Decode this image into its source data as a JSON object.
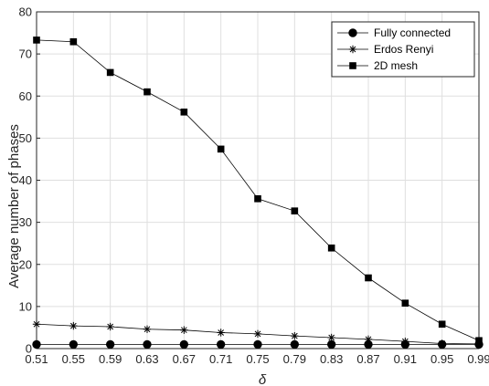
{
  "chart_data": {
    "type": "line",
    "xlabel": "δ",
    "ylabel": "Average number of phases",
    "x": [
      0.51,
      0.55,
      0.59,
      0.63,
      0.67,
      0.71,
      0.75,
      0.79,
      0.83,
      0.87,
      0.91,
      0.95,
      0.99
    ],
    "x_tick_labels": [
      "0.51",
      "0.55",
      "0.59",
      "0.63",
      "0.67",
      "0.71",
      "0.75",
      "0.79",
      "0.83",
      "0.87",
      "0.91",
      "0.95",
      "0.99"
    ],
    "y_ticks": [
      0,
      10,
      20,
      30,
      40,
      50,
      60,
      70,
      80
    ],
    "y_tick_labels": [
      "0",
      "10",
      "20",
      "30",
      "40",
      "50",
      "60",
      "70",
      "80"
    ],
    "xlim": [
      0.51,
      0.99
    ],
    "ylim": [
      0,
      80
    ],
    "grid": true,
    "legend_position": "top-right",
    "series": [
      {
        "name": "Fully connected",
        "marker": "circle",
        "color": "#000000",
        "values": [
          1,
          1,
          1,
          1,
          1,
          1,
          1,
          1,
          1,
          1,
          1,
          1,
          1
        ]
      },
      {
        "name": "Erdos Renyi",
        "marker": "asterisk",
        "color": "#000000",
        "values": [
          5.8,
          5.4,
          5.2,
          4.6,
          4.4,
          3.8,
          3.5,
          3.0,
          2.6,
          2.2,
          1.7,
          1.2,
          1.1
        ]
      },
      {
        "name": "2D mesh",
        "marker": "square",
        "color": "#000000",
        "values": [
          73.3,
          72.9,
          65.6,
          61.0,
          56.2,
          47.4,
          35.6,
          32.7,
          23.9,
          16.8,
          10.8,
          5.8,
          1.9
        ]
      }
    ]
  }
}
